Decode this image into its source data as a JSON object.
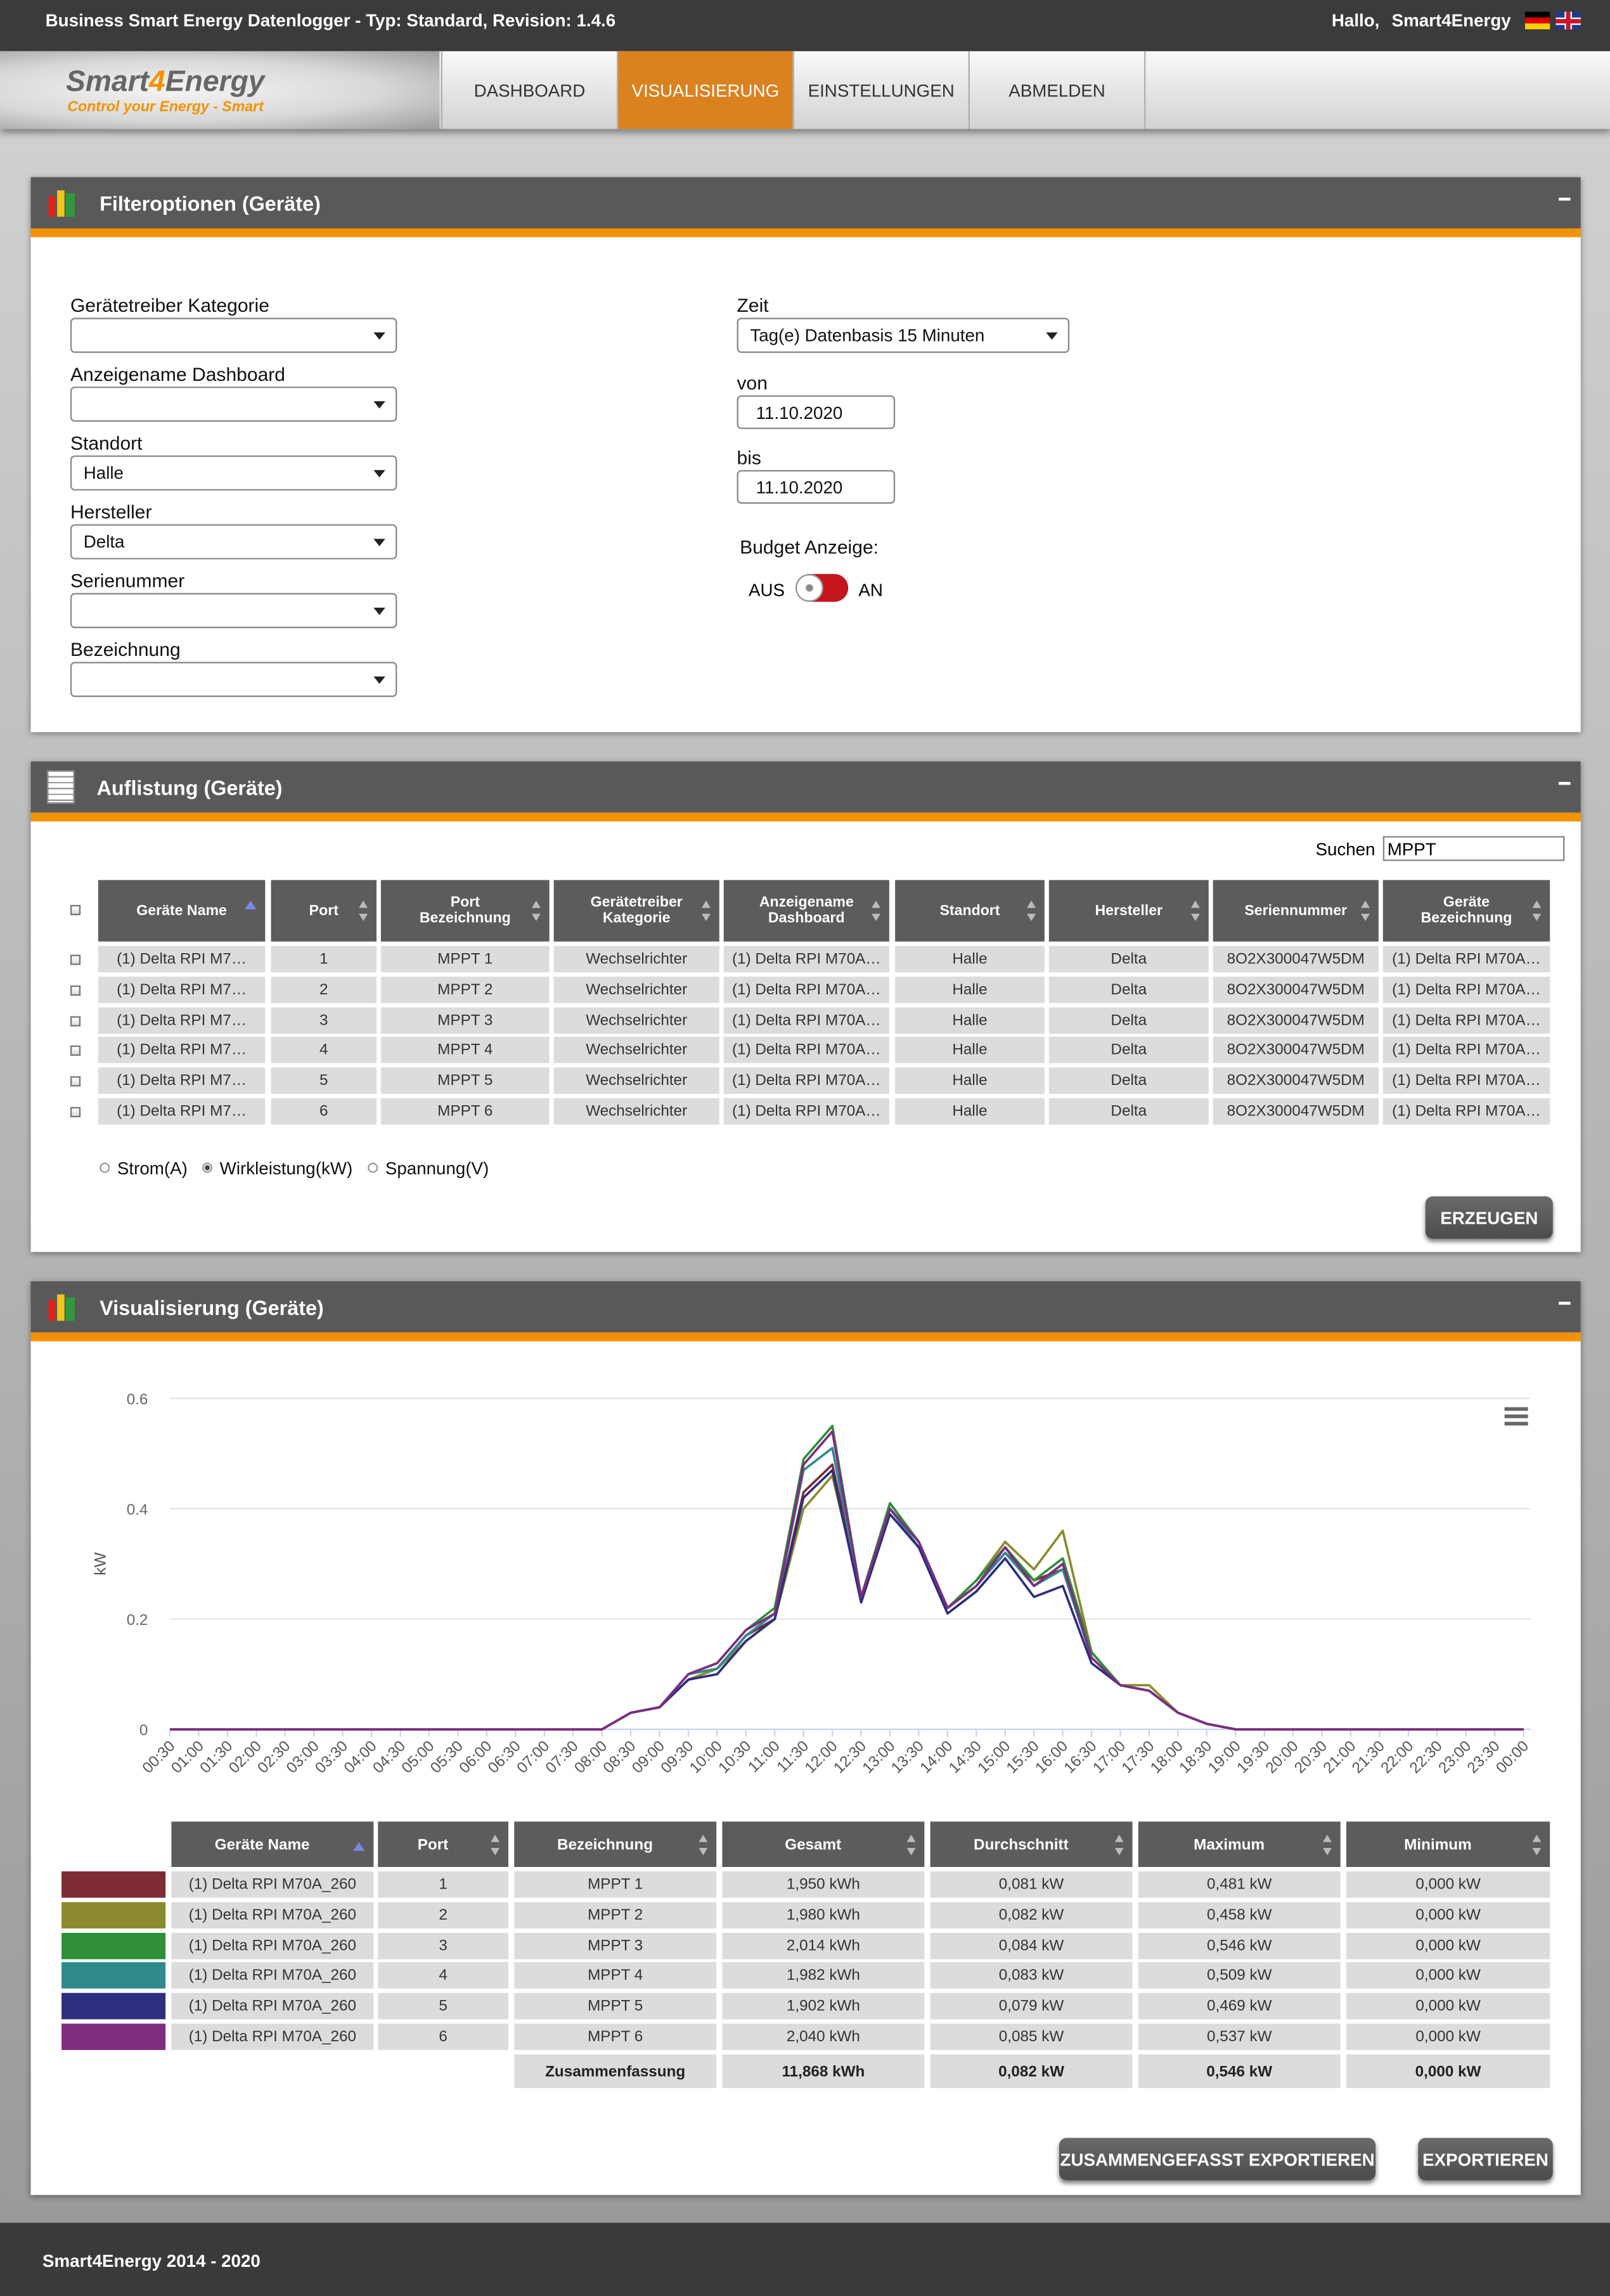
{
  "header": {
    "title": "Business Smart Energy Datenlogger - Typ: Standard, Revision: 1.4.6",
    "greeting": "Hallo,",
    "user": "Smart4Energy"
  },
  "logo": {
    "name": [
      "Smart",
      "4",
      "Energy"
    ],
    "tagline": "Control your Energy - Smart"
  },
  "nav": {
    "items": [
      "DASHBOARD",
      "VISUALISIERUNG",
      "EINSTELLUNGEN",
      "ABMELDEN"
    ],
    "active": 1
  },
  "filter": {
    "title": "Filteroptionen (Geräte)",
    "fields": [
      {
        "label": "Gerätetreiber Kategorie"
      },
      {
        "label": "Anzeigename Dashboard"
      },
      {
        "label": "Standort",
        "value": "Halle"
      },
      {
        "label": "Hersteller",
        "value": "Delta"
      },
      {
        "label": "Serienummer"
      },
      {
        "label": "Bezeichnung"
      }
    ],
    "time_label": "Zeit",
    "time_value": "Tag(e) Datenbasis 15 Minuten",
    "from_label": "von",
    "from_value": "11.10.2020",
    "to_label": "bis",
    "to_value": "11.10.2020",
    "budget_label": "Budget Anzeige:",
    "budget_off": "AUS",
    "budget_on": "AN"
  },
  "list": {
    "title": "Auflistung (Geräte)",
    "search_label": "Suchen",
    "search_value": "MPPT",
    "columns": [
      "Geräte Name",
      "Port",
      "Port Bezeichnung",
      "Gerätetreiber Kategorie",
      "Anzeigename Dashboard",
      "Standort",
      "Hersteller",
      "Seriennummer",
      "Geräte Bezeichnung"
    ],
    "rows": [
      [
        "(1) Delta RPI M7…",
        "1",
        "MPPT 1",
        "Wechselrichter",
        "(1) Delta RPI M70A…",
        "Halle",
        "Delta",
        "8O2X300047W5DM",
        "(1) Delta RPI M70A…"
      ],
      [
        "(1) Delta RPI M7…",
        "2",
        "MPPT 2",
        "Wechselrichter",
        "(1) Delta RPI M70A…",
        "Halle",
        "Delta",
        "8O2X300047W5DM",
        "(1) Delta RPI M70A…"
      ],
      [
        "(1) Delta RPI M7…",
        "3",
        "MPPT 3",
        "Wechselrichter",
        "(1) Delta RPI M70A…",
        "Halle",
        "Delta",
        "8O2X300047W5DM",
        "(1) Delta RPI M70A…"
      ],
      [
        "(1) Delta RPI M7…",
        "4",
        "MPPT 4",
        "Wechselrichter",
        "(1) Delta RPI M70A…",
        "Halle",
        "Delta",
        "8O2X300047W5DM",
        "(1) Delta RPI M70A…"
      ],
      [
        "(1) Delta RPI M7…",
        "5",
        "MPPT 5",
        "Wechselrichter",
        "(1) Delta RPI M70A…",
        "Halle",
        "Delta",
        "8O2X300047W5DM",
        "(1) Delta RPI M70A…"
      ],
      [
        "(1) Delta RPI M7…",
        "6",
        "MPPT 6",
        "Wechselrichter",
        "(1) Delta RPI M70A…",
        "Halle",
        "Delta",
        "8O2X300047W5DM",
        "(1) Delta RPI M70A…"
      ]
    ],
    "options": [
      "Strom(A)",
      "Wirkleistung(kW)",
      "Spannung(V)"
    ],
    "selected_option": 1,
    "button": "ERZEUGEN"
  },
  "visual": {
    "title": "Visualisierung (Geräte)",
    "columns": [
      "Geräte Name",
      "Port",
      "Bezeichnung",
      "Gesamt",
      "Durchschnitt",
      "Maximum",
      "Minimum"
    ],
    "rows": [
      [
        "(1) Delta RPI M70A_260",
        "1",
        "MPPT 1",
        "1,950 kWh",
        "0,081 kW",
        "0,481 kW",
        "0,000 kW"
      ],
      [
        "(1) Delta RPI M70A_260",
        "2",
        "MPPT 2",
        "1,980 kWh",
        "0,082 kW",
        "0,458 kW",
        "0,000 kW"
      ],
      [
        "(1) Delta RPI M70A_260",
        "3",
        "MPPT 3",
        "2,014 kWh",
        "0,084 kW",
        "0,546 kW",
        "0,000 kW"
      ],
      [
        "(1) Delta RPI M70A_260",
        "4",
        "MPPT 4",
        "1,982 kWh",
        "0,083 kW",
        "0,509 kW",
        "0,000 kW"
      ],
      [
        "(1) Delta RPI M70A_260",
        "5",
        "MPPT 5",
        "1,902 kWh",
        "0,079 kW",
        "0,469 kW",
        "0,000 kW"
      ],
      [
        "(1) Delta RPI M70A_260",
        "6",
        "MPPT 6",
        "2,040 kWh",
        "0,085 kW",
        "0,537 kW",
        "0,000 kW"
      ]
    ],
    "total": [
      "Zusammenfassung",
      "11,868 kWh",
      "0,082 kW",
      "0,546 kW",
      "0,000 kW"
    ],
    "buttons": [
      "ZUSAMMENGEFASST EXPORTIEREN",
      "EXPORTIEREN"
    ]
  },
  "footer": "Smart4Energy 2014 - 2020",
  "chart_data": {
    "type": "line",
    "y_label": "kW",
    "categories": [
      "00:30",
      "01:00",
      "01:30",
      "02:00",
      "02:30",
      "03:00",
      "03:30",
      "04:00",
      "04:30",
      "05:00",
      "05:30",
      "06:00",
      "06:30",
      "07:00",
      "07:30",
      "08:00",
      "08:30",
      "09:00",
      "09:30",
      "10:00",
      "10:30",
      "11:00",
      "11:30",
      "12:00",
      "12:30",
      "13:00",
      "13:30",
      "14:00",
      "14:30",
      "15:00",
      "15:30",
      "16:00",
      "16:30",
      "17:00",
      "17:30",
      "18:00",
      "18:30",
      "19:00",
      "19:30",
      "20:00",
      "20:30",
      "21:00",
      "21:30",
      "22:00",
      "22:30",
      "23:00",
      "23:30",
      "00:00"
    ],
    "ylim": [
      0,
      0.6
    ],
    "yticks": [
      0,
      0.2,
      0.4,
      0.6
    ],
    "grid": true,
    "series": [
      {
        "color": "#7d2b35",
        "values": [
          0,
          0,
          0,
          0,
          0,
          0,
          0,
          0,
          0,
          0,
          0,
          0,
          0,
          0,
          0,
          0,
          0.03,
          0.04,
          0.09,
          0.11,
          0.17,
          0.2,
          0.43,
          0.48,
          0.24,
          0.4,
          0.34,
          0.22,
          0.26,
          0.32,
          0.27,
          0.29,
          0.13,
          0.08,
          0.07,
          0.03,
          0.01,
          0,
          0,
          0,
          0,
          0,
          0,
          0,
          0,
          0,
          0,
          0
        ]
      },
      {
        "color": "#8b8a2f",
        "values": [
          0,
          0,
          0,
          0,
          0,
          0,
          0,
          0,
          0,
          0,
          0,
          0,
          0,
          0,
          0,
          0,
          0.03,
          0.04,
          0.09,
          0.11,
          0.16,
          0.2,
          0.4,
          0.46,
          0.24,
          0.41,
          0.34,
          0.22,
          0.27,
          0.34,
          0.29,
          0.36,
          0.14,
          0.08,
          0.08,
          0.03,
          0.01,
          0,
          0,
          0,
          0,
          0,
          0,
          0,
          0,
          0,
          0,
          0
        ]
      },
      {
        "color": "#2f8f3a",
        "values": [
          0,
          0,
          0,
          0,
          0,
          0,
          0,
          0,
          0,
          0,
          0,
          0,
          0,
          0,
          0,
          0,
          0.03,
          0.04,
          0.1,
          0.12,
          0.18,
          0.22,
          0.49,
          0.55,
          0.24,
          0.41,
          0.34,
          0.22,
          0.27,
          0.33,
          0.27,
          0.31,
          0.14,
          0.08,
          0.07,
          0.03,
          0.01,
          0,
          0,
          0,
          0,
          0,
          0,
          0,
          0,
          0,
          0,
          0
        ]
      },
      {
        "color": "#2f8a8c",
        "values": [
          0,
          0,
          0,
          0,
          0,
          0,
          0,
          0,
          0,
          0,
          0,
          0,
          0,
          0,
          0,
          0,
          0.03,
          0.04,
          0.1,
          0.11,
          0.17,
          0.21,
          0.47,
          0.51,
          0.24,
          0.4,
          0.33,
          0.22,
          0.26,
          0.32,
          0.26,
          0.29,
          0.13,
          0.08,
          0.07,
          0.03,
          0.01,
          0,
          0,
          0,
          0,
          0,
          0,
          0,
          0,
          0,
          0,
          0
        ]
      },
      {
        "color": "#2e2e7e",
        "values": [
          0,
          0,
          0,
          0,
          0,
          0,
          0,
          0,
          0,
          0,
          0,
          0,
          0,
          0,
          0,
          0,
          0.03,
          0.04,
          0.09,
          0.1,
          0.16,
          0.2,
          0.42,
          0.47,
          0.23,
          0.39,
          0.33,
          0.21,
          0.25,
          0.31,
          0.24,
          0.26,
          0.12,
          0.08,
          0.07,
          0.03,
          0.01,
          0,
          0,
          0,
          0,
          0,
          0,
          0,
          0,
          0,
          0,
          0
        ]
      },
      {
        "color": "#7d2e80",
        "values": [
          0,
          0,
          0,
          0,
          0,
          0,
          0,
          0,
          0,
          0,
          0,
          0,
          0,
          0,
          0,
          0,
          0.03,
          0.04,
          0.1,
          0.12,
          0.18,
          0.21,
          0.48,
          0.54,
          0.24,
          0.4,
          0.34,
          0.22,
          0.26,
          0.33,
          0.26,
          0.3,
          0.13,
          0.08,
          0.07,
          0.03,
          0.01,
          0,
          0,
          0,
          0,
          0,
          0,
          0,
          0,
          0,
          0,
          0
        ]
      }
    ]
  }
}
